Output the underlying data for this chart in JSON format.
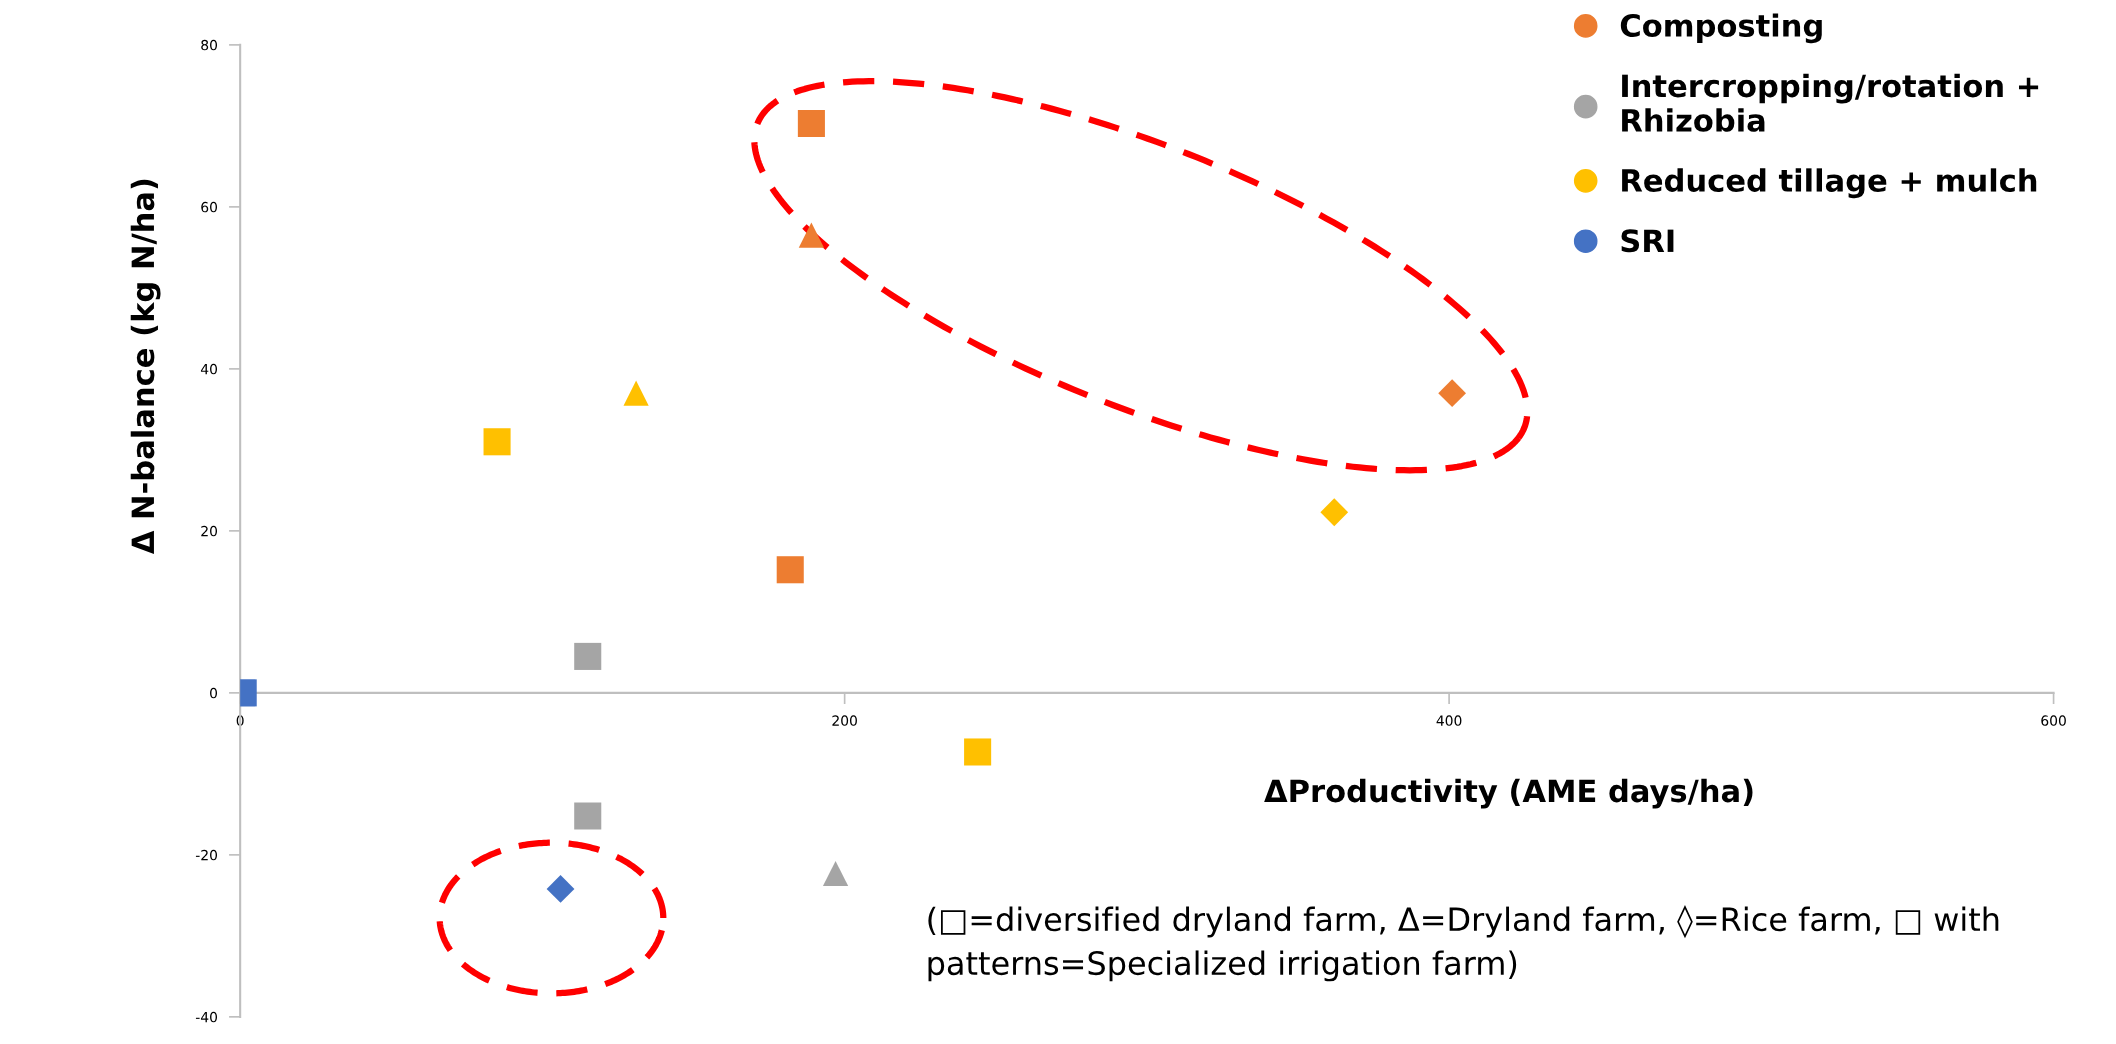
{
  "chart_data": {
    "type": "scatter",
    "xlabel": "ΔProductivity (AME days/ha)",
    "ylabel": "Δ N-balance (kg N/ha)",
    "xlim": [
      0,
      600
    ],
    "xticks": [
      0,
      200,
      400,
      600
    ],
    "ylim": [
      -40,
      80
    ],
    "yticks": [
      -40,
      -20,
      0,
      20,
      40,
      60,
      80
    ],
    "grid": false,
    "legend": "top right",
    "series": [
      {
        "name": "Composting",
        "color": "#ed7d31",
        "marker": "square",
        "x": [
          189,
          182
        ],
        "values": [
          70.3,
          15.2
        ]
      },
      {
        "color": "#ed7d31",
        "marker": "triangle",
        "x": [
          189
        ],
        "values": [
          56.5
        ]
      },
      {
        "color": "#ed7d31",
        "marker": "diamond",
        "x": [
          401
        ],
        "values": [
          37
        ]
      },
      {
        "name": "Intercropping/rotation +\nRhizobia",
        "color": "#a5a5a5",
        "marker": "square",
        "x": [
          115,
          115
        ],
        "values": [
          4.5,
          -15.2
        ]
      },
      {
        "color": "#a5a5a5",
        "marker": "triangle",
        "x": [
          197
        ],
        "values": [
          -22.3
        ]
      },
      {
        "name": "Reduced tillage + mulch",
        "color": "#ffc000",
        "marker": "square",
        "x": [
          85,
          244
        ],
        "values": [
          31,
          -7.3
        ]
      },
      {
        "color": "#ffc000",
        "marker": "triangle",
        "x": [
          131
        ],
        "values": [
          37
        ]
      },
      {
        "color": "#ffc000",
        "marker": "diamond",
        "x": [
          362
        ],
        "values": [
          22.3
        ]
      },
      {
        "name": "SRI",
        "color": "#4472c4",
        "marker": "square",
        "x": [
          1
        ],
        "values": [
          0
        ]
      },
      {
        "color": "#4472c4",
        "marker": "diamond",
        "x": [
          106
        ],
        "values": [
          -24.2
        ]
      }
    ],
    "annotations": [
      "(□=diversified dryland farm, Δ=Dryland farm, ◊=Rice farm, □ with\npatterns=Specialized irrigation farm)"
    ]
  }
}
